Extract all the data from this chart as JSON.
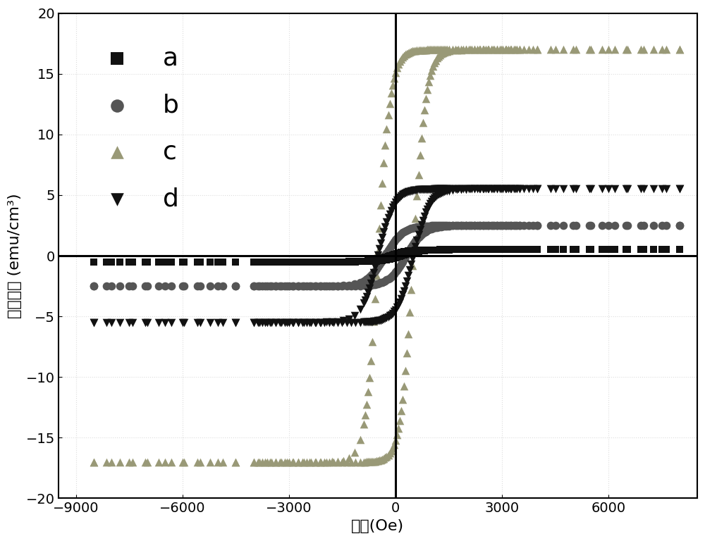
{
  "xlabel": "磁场(Oe)",
  "ylabel": "磁化强度 (emu/cm³)",
  "xlim": [
    -9500,
    8500
  ],
  "ylim": [
    -20,
    20
  ],
  "xticks": [
    -9000,
    -6000,
    -3000,
    0,
    3000,
    6000
  ],
  "yticks": [
    -20,
    -15,
    -10,
    -5,
    0,
    5,
    10,
    15,
    20
  ],
  "background_color": "#ffffff",
  "grid_color": "#dddddd",
  "series": [
    {
      "key": "a",
      "sat": 0.5,
      "coer": 150,
      "shape": 500,
      "color": "#111111",
      "marker": "s",
      "ms": 60,
      "zorder": 4,
      "upper_H_sparse": [
        -8500,
        -7500,
        -6500,
        -5500,
        -4500,
        -3500
      ],
      "upper_H_dense_start": -2500,
      "upper_H_dense_end": 8000,
      "lower_H_dense_start": 8000,
      "lower_H_dense_end": -2500,
      "lower_H_sparse": [
        -3500,
        -4500,
        -5500,
        -6500,
        -7500,
        -8500
      ]
    },
    {
      "key": "b",
      "sat": 2.5,
      "coer": 300,
      "shape": 500,
      "color": "#555555",
      "marker": "o",
      "ms": 70,
      "zorder": 3,
      "upper_H_sparse": [
        -8500,
        -7500,
        -6500,
        -5500,
        -4500,
        -3500
      ],
      "upper_H_dense_start": -2500,
      "upper_H_dense_end": 8000,
      "lower_H_dense_start": 8000,
      "lower_H_dense_end": -2500,
      "lower_H_sparse": [
        -3500,
        -4500,
        -5500,
        -6500,
        -7500,
        -8500
      ]
    },
    {
      "key": "c",
      "sat": 17.0,
      "coer": 500,
      "shape": 350,
      "color": "#999977",
      "marker": "^",
      "ms": 70,
      "zorder": 2,
      "upper_H_sparse": [
        -8500,
        -7500,
        -6500,
        -5500,
        -4500,
        -3500
      ],
      "upper_H_dense_start": -2500,
      "upper_H_dense_end": 8000,
      "lower_H_dense_start": 8000,
      "lower_H_dense_end": -2500,
      "lower_H_sparse": [
        -3500,
        -4500,
        -5500,
        -6500,
        -7500,
        -8500
      ]
    },
    {
      "key": "d",
      "sat": 5.5,
      "coer": 500,
      "shape": 450,
      "color": "#111111",
      "marker": "v",
      "ms": 70,
      "zorder": 5,
      "upper_H_sparse": [
        -8500,
        -7500,
        -6500,
        -5500,
        -4500,
        -3500
      ],
      "upper_H_dense_start": -2500,
      "upper_H_dense_end": 8000,
      "lower_H_dense_start": 8000,
      "lower_H_dense_end": -2500,
      "lower_H_sparse": [
        -3500,
        -4500,
        -5500,
        -6500,
        -7500,
        -8500
      ]
    }
  ],
  "legend_fontsize": 26,
  "axis_fontsize": 16,
  "tick_fontsize": 14
}
